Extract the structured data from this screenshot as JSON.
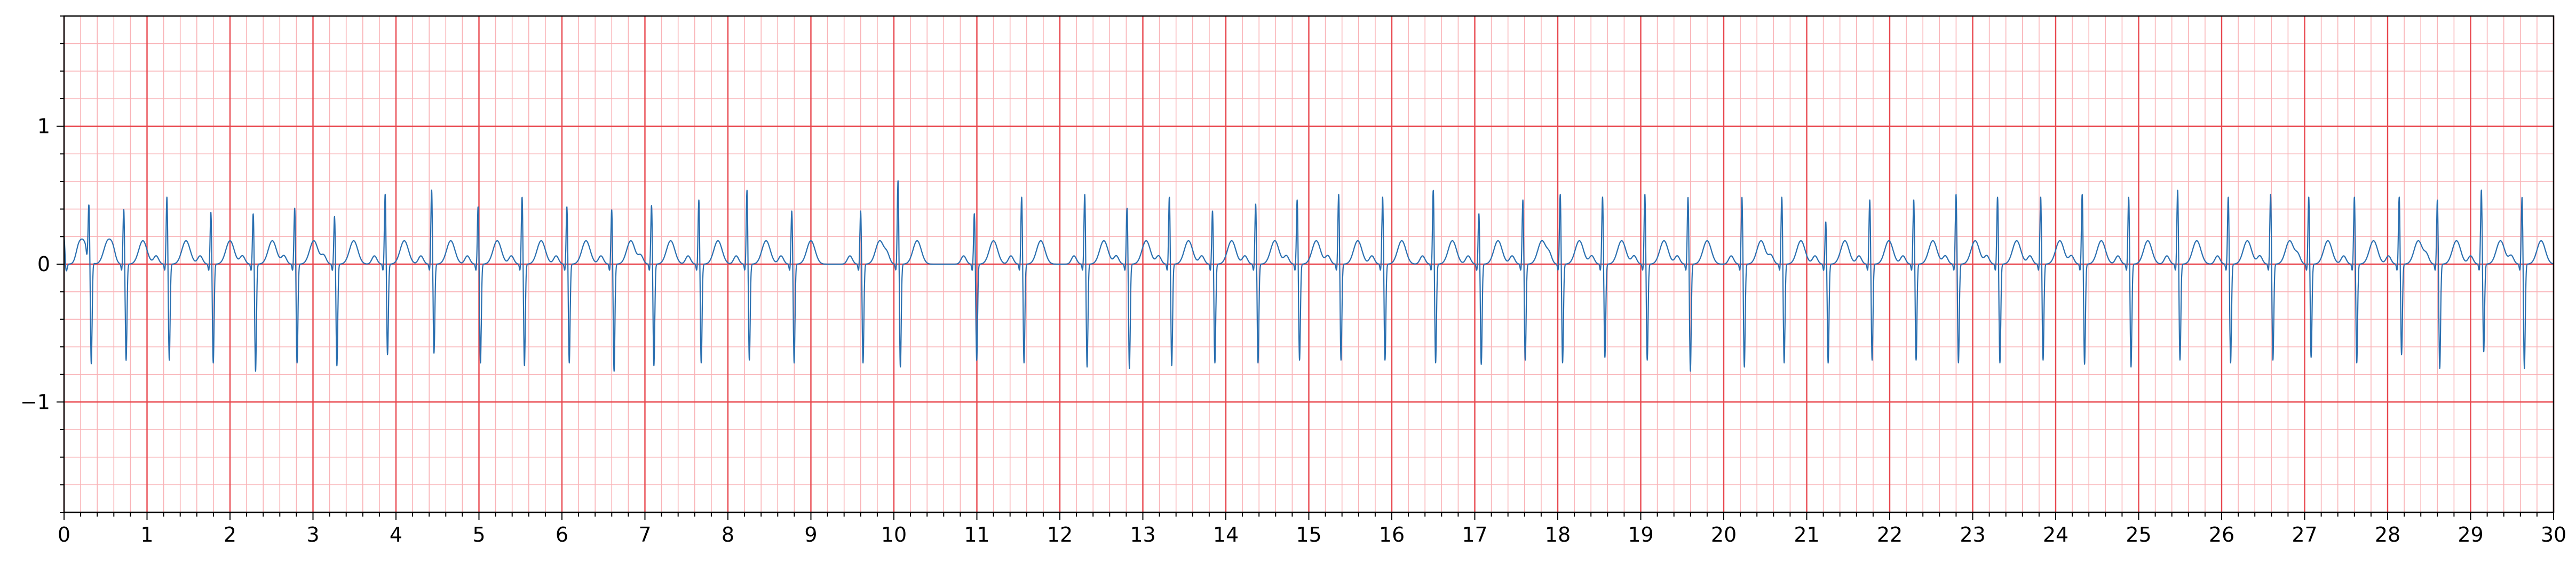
{
  "chart_data": {
    "type": "line",
    "title": "",
    "xlabel": "",
    "ylabel": "",
    "xlim": [
      0,
      30
    ],
    "ylim": [
      -1.8,
      1.8
    ],
    "x_ticks": [
      0,
      1,
      2,
      3,
      4,
      5,
      6,
      7,
      8,
      9,
      10,
      11,
      12,
      13,
      14,
      15,
      16,
      17,
      18,
      19,
      20,
      21,
      22,
      23,
      24,
      25,
      26,
      27,
      28,
      29,
      30
    ],
    "x_tick_labels": [
      "0",
      "1",
      "2",
      "3",
      "4",
      "5",
      "6",
      "7",
      "8",
      "9",
      "10",
      "11",
      "12",
      "13",
      "14",
      "15",
      "16",
      "17",
      "18",
      "19",
      "20",
      "21",
      "22",
      "23",
      "24",
      "25",
      "26",
      "27",
      "28",
      "29",
      "30"
    ],
    "y_ticks": [
      -1,
      0,
      1
    ],
    "y_tick_labels": [
      "−1",
      "0",
      "1"
    ],
    "grid": {
      "major_x_step": 1,
      "minor_x_step": 0.2,
      "major_y_step": 1,
      "minor_y_step": 0.2,
      "major_color": "#e8474e",
      "minor_color": "#f9b3b7"
    },
    "line_color": "#2a6fb0",
    "beat_times": [
      0.0,
      0.3,
      0.72,
      1.24,
      1.77,
      2.28,
      2.78,
      3.26,
      3.87,
      4.43,
      4.99,
      5.52,
      6.06,
      6.6,
      7.08,
      7.65,
      8.23,
      8.77,
      9.6,
      10.05,
      10.97,
      11.54,
      12.3,
      12.81,
      13.32,
      13.84,
      14.36,
      14.86,
      15.36,
      15.89,
      16.5,
      17.05,
      17.58,
      18.03,
      18.54,
      19.05,
      19.57,
      20.22,
      20.7,
      21.23,
      21.76,
      22.29,
      22.8,
      23.3,
      23.82,
      24.32,
      24.88,
      25.47,
      26.08,
      26.59,
      27.05,
      27.6,
      28.14,
      28.6,
      29.13,
      29.62
    ],
    "r_peaks": [
      0.2,
      0.38,
      0.41,
      0.5,
      0.39,
      0.38,
      0.42,
      0.36,
      0.52,
      0.55,
      0.43,
      0.5,
      0.43,
      0.41,
      0.44,
      0.48,
      0.55,
      0.4,
      0.4,
      0.62,
      0.38,
      0.5,
      0.52,
      0.42,
      0.5,
      0.4,
      0.45,
      0.48,
      0.52,
      0.5,
      0.55,
      0.38,
      0.48,
      0.52,
      0.5,
      0.52,
      0.5,
      0.5,
      0.5,
      0.32,
      0.48,
      0.48,
      0.52,
      0.5,
      0.5,
      0.52,
      0.5,
      0.55,
      0.5,
      0.52,
      0.5,
      0.5,
      0.5,
      0.48,
      0.55,
      0.5
    ],
    "s_troughs": [
      -0.05,
      -0.75,
      -0.7,
      -0.7,
      -0.72,
      -0.78,
      -0.72,
      -0.74,
      -0.66,
      -0.65,
      -0.72,
      -0.74,
      -0.72,
      -0.78,
      -0.74,
      -0.72,
      -0.7,
      -0.72,
      -0.72,
      -0.75,
      -0.7,
      -0.72,
      -0.75,
      -0.76,
      -0.74,
      -0.72,
      -0.72,
      -0.7,
      -0.7,
      -0.7,
      -0.72,
      -0.73,
      -0.7,
      -0.72,
      -0.68,
      -0.7,
      -0.78,
      -0.75,
      -0.72,
      -0.72,
      -0.7,
      -0.7,
      -0.72,
      -0.72,
      -0.7,
      -0.73,
      -0.75,
      -0.7,
      -0.72,
      -0.7,
      -0.68,
      -0.72,
      -0.66,
      -0.76,
      -0.64,
      -0.76
    ]
  }
}
